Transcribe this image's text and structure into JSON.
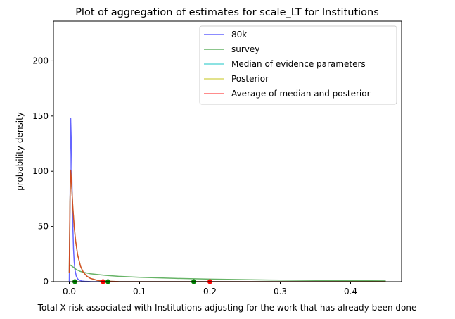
{
  "chart_data": {
    "type": "line",
    "title": "Plot of aggregation of estimates for scale_LT for Institutions",
    "xlabel": "Total X-risk associated with Institutions adjusting for the work that has already been done",
    "ylabel": "probability density",
    "xlim": [
      -0.0225,
      0.4725
    ],
    "ylim": [
      0,
      236
    ],
    "xticks": [
      0.0,
      0.1,
      0.2,
      0.3,
      0.4
    ],
    "xtick_labels": [
      "0.0",
      "0.1",
      "0.2",
      "0.3",
      "0.4"
    ],
    "yticks": [
      0,
      50,
      100,
      150,
      200
    ],
    "ytick_labels": [
      "0",
      "50",
      "100",
      "150",
      "200"
    ],
    "grid": false,
    "legend_position": "top-right",
    "series": [
      {
        "name": "80k",
        "color": "#0000ff",
        "x": [
          0.0,
          0.001,
          0.0015,
          0.002,
          0.003,
          0.004,
          0.005,
          0.006,
          0.007,
          0.008,
          0.01,
          0.012,
          0.015,
          0.018,
          0.022,
          0.03,
          0.04,
          0.05,
          0.07,
          0.1,
          0.45
        ],
        "y": [
          0,
          60,
          115,
          148,
          125,
          85,
          52,
          30,
          18,
          11,
          5,
          2.5,
          1.2,
          0.6,
          0.3,
          0.1,
          0.03,
          0.01,
          0,
          0,
          0
        ]
      },
      {
        "name": "survey",
        "color": "#008000",
        "x": [
          0.0,
          0.002,
          0.004,
          0.007,
          0.01,
          0.015,
          0.02,
          0.03,
          0.05,
          0.07,
          0.1,
          0.15,
          0.2,
          0.25,
          0.3,
          0.35,
          0.4,
          0.45
        ],
        "y": [
          14,
          15,
          14,
          12.5,
          11,
          9.5,
          8.5,
          7.2,
          5.8,
          4.9,
          4.0,
          3.0,
          2.3,
          1.8,
          1.4,
          1.1,
          0.9,
          0.7
        ]
      },
      {
        "name": "Median of evidence parameters",
        "color": "#00bfbf",
        "x": [
          0.0,
          0.001,
          0.002,
          0.003,
          0.004,
          0.005,
          0.007,
          0.009,
          0.012,
          0.016,
          0.02,
          0.025,
          0.03,
          0.04,
          0.05,
          0.07,
          0.1,
          0.45
        ],
        "y": [
          8,
          72,
          101,
          92,
          80,
          68,
          50,
          37,
          24,
          14,
          8.5,
          5,
          3,
          1.2,
          0.5,
          0.1,
          0,
          0
        ]
      },
      {
        "name": "Posterior",
        "color": "#bfbf00",
        "x": [
          0.0,
          0.001,
          0.002,
          0.003,
          0.004,
          0.005,
          0.007,
          0.009,
          0.012,
          0.016,
          0.02,
          0.025,
          0.03,
          0.04,
          0.05,
          0.07,
          0.1,
          0.45
        ],
        "y": [
          8,
          72,
          101,
          92,
          80,
          68,
          50,
          37,
          24,
          14,
          8.5,
          5,
          3,
          1.2,
          0.5,
          0.1,
          0,
          0
        ]
      },
      {
        "name": "Average of median and posterior",
        "color": "#ff0000",
        "x": [
          0.0,
          0.001,
          0.002,
          0.003,
          0.004,
          0.005,
          0.007,
          0.009,
          0.012,
          0.016,
          0.02,
          0.025,
          0.03,
          0.04,
          0.05,
          0.07,
          0.1,
          0.45
        ],
        "y": [
          8,
          72,
          101,
          92,
          80,
          68,
          50,
          37,
          24,
          14,
          8.5,
          5,
          3,
          1.2,
          0.5,
          0.1,
          0,
          0
        ]
      }
    ],
    "markers": [
      {
        "x": 0.008,
        "y": 0,
        "color": "#008000"
      },
      {
        "x": 0.055,
        "y": 0,
        "color": "#008000"
      },
      {
        "x": 0.177,
        "y": 0,
        "color": "#008000"
      },
      {
        "x": 0.048,
        "y": 0,
        "color": "#ff0000"
      },
      {
        "x": 0.2,
        "y": 0,
        "color": "#ff0000"
      }
    ]
  }
}
